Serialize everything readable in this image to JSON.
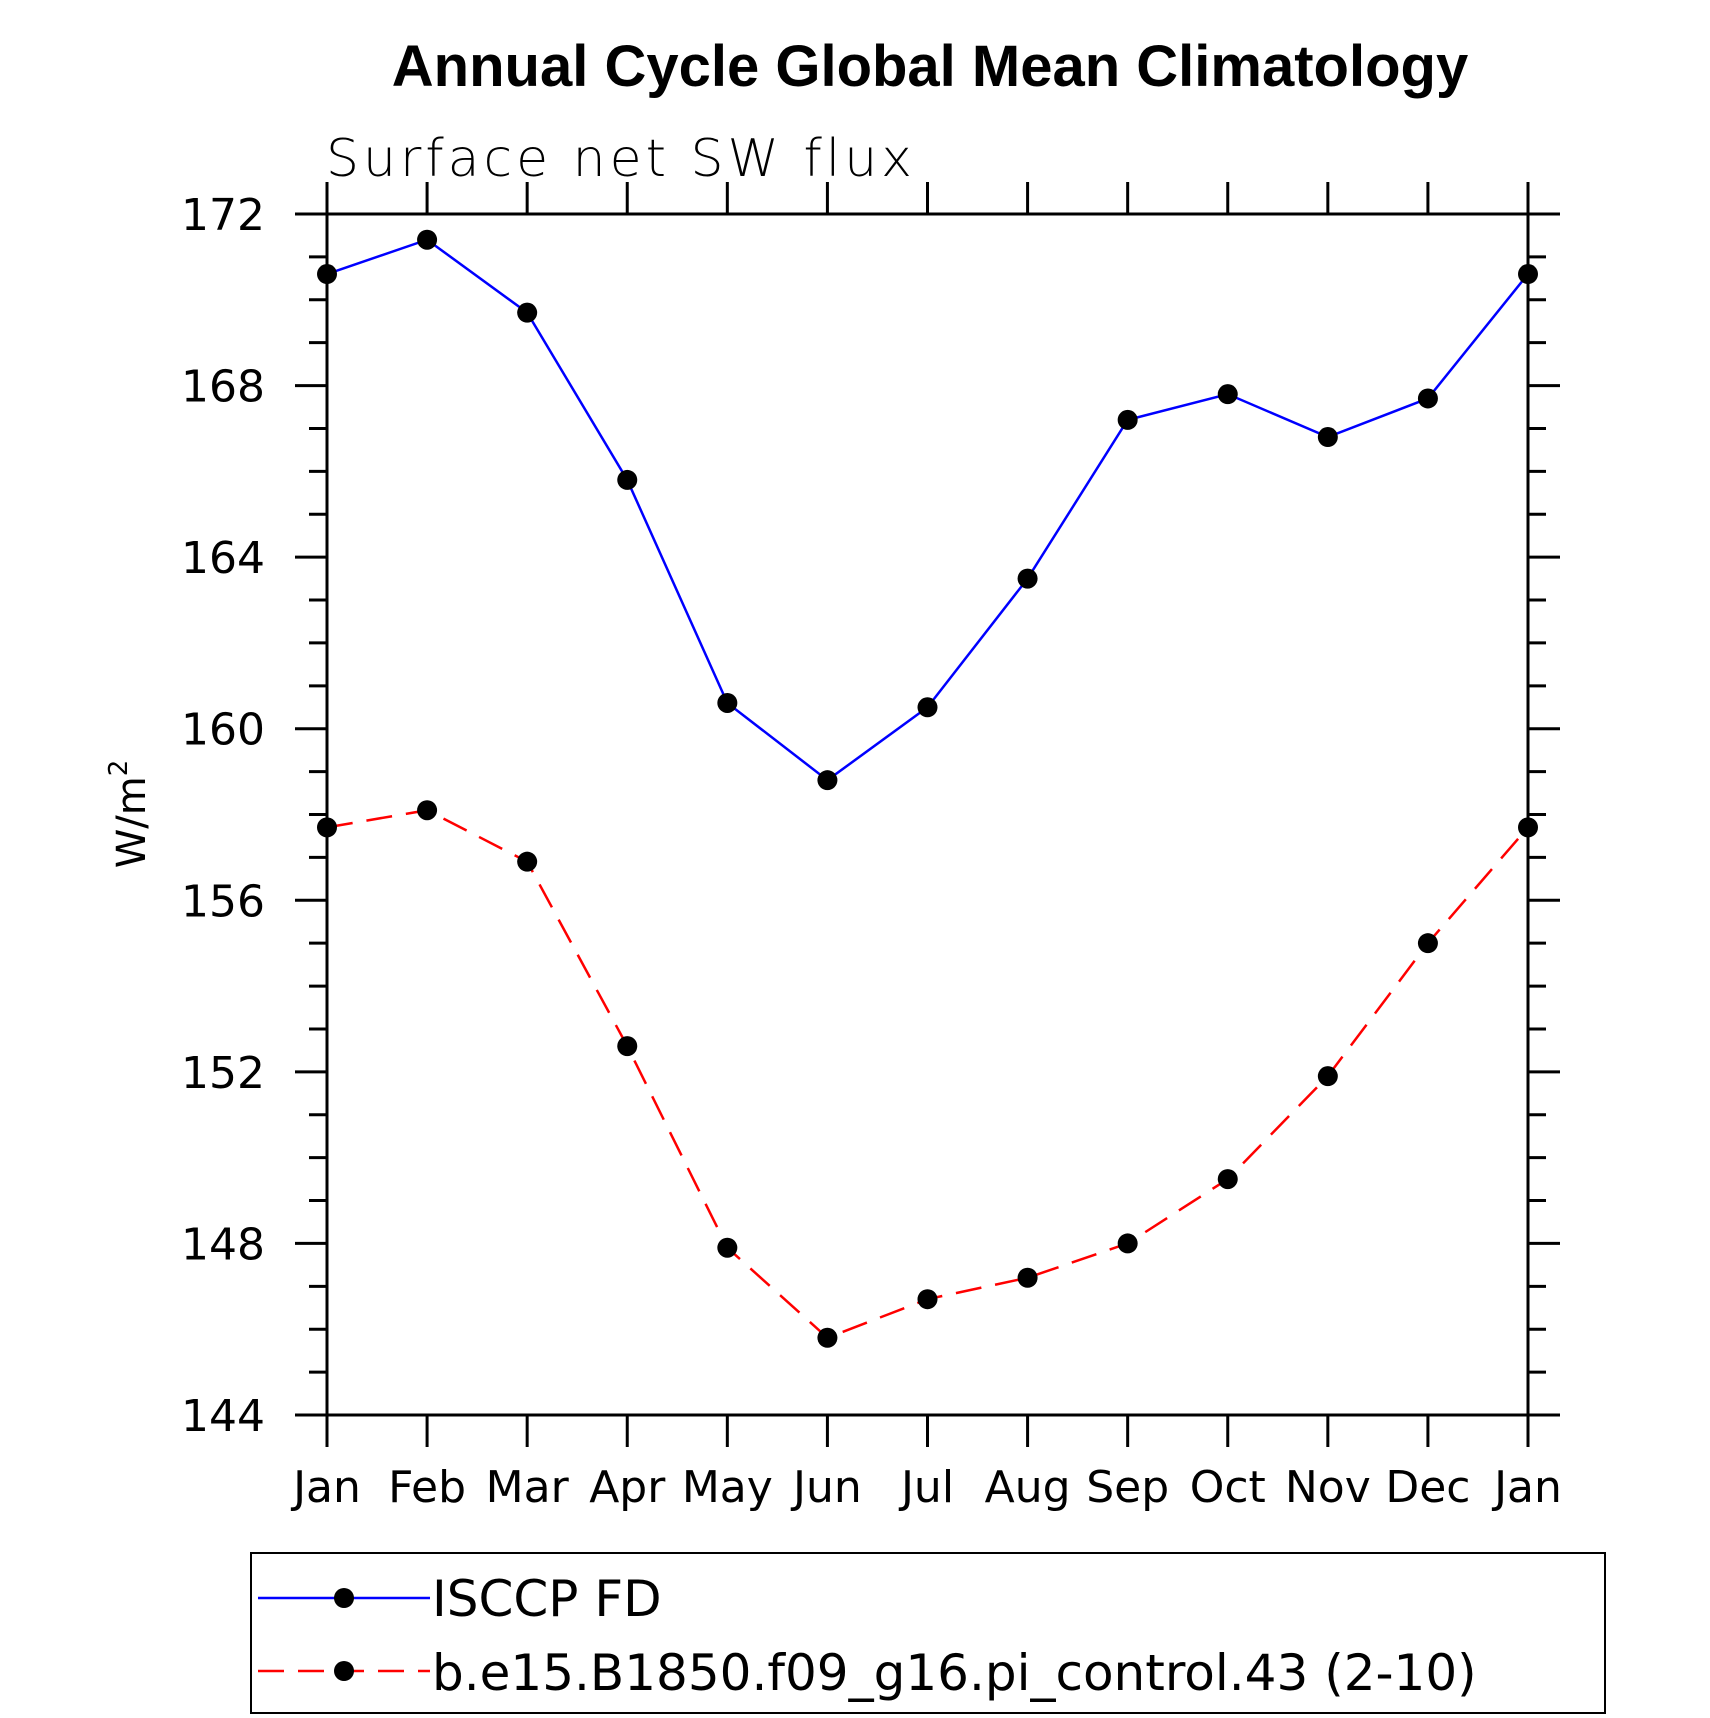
{
  "chart_data": {
    "type": "line",
    "title": "Annual Cycle Global Mean Climatology",
    "subtitle": "Surface net SW flux",
    "ylabel": "W/m",
    "ylabel_superscript": "2",
    "categories": [
      "Jan",
      "Feb",
      "Mar",
      "Apr",
      "May",
      "Jun",
      "Jul",
      "Aug",
      "Sep",
      "Oct",
      "Nov",
      "Dec",
      "Jan"
    ],
    "ylim": [
      144,
      172
    ],
    "yticks": [
      144,
      148,
      152,
      156,
      160,
      164,
      168,
      172
    ],
    "series": [
      {
        "name": "ISCCP FD",
        "color": "#0000ff",
        "dash": "solid",
        "values": [
          170.6,
          171.4,
          169.7,
          165.8,
          160.6,
          158.8,
          160.5,
          163.5,
          167.2,
          167.8,
          166.8,
          167.7,
          170.6
        ]
      },
      {
        "name": "b.e15.B1850.f09_g16.pi_control.43 (2-10)",
        "color": "#ff0000",
        "dash": "dashed",
        "values": [
          157.7,
          158.1,
          156.9,
          152.6,
          147.9,
          145.8,
          146.7,
          147.2,
          148.0,
          149.5,
          151.9,
          155.0,
          157.7
        ]
      }
    ],
    "marker_color": "#000000",
    "legend_position": "bottom"
  }
}
